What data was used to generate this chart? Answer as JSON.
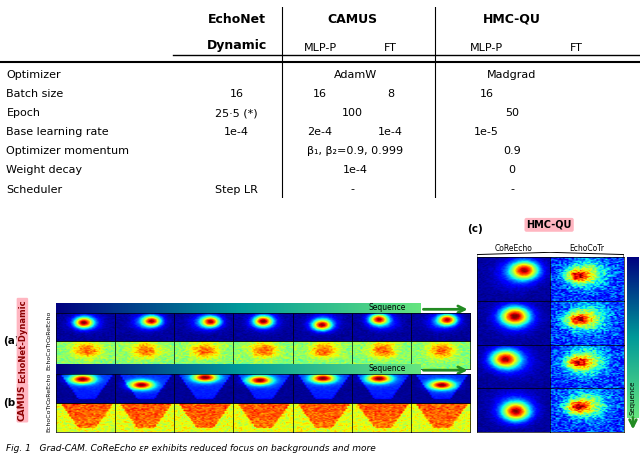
{
  "table_fontsize": 8,
  "table_header_fontsize": 9,
  "caption": "Fig. 1   Grad-CAM. CoReEcho εᴘ exhibits reduced focus on backgrounds and more",
  "pink_bg": "#F4A0A0",
  "panel_a_label": "(a)",
  "panel_b_label": "(b)",
  "panel_c_label": "(c)",
  "echonet_label": "EchoNet-Dynamic",
  "camus_label": "CAMUS",
  "hmcqu_label": "HMC-QU",
  "corecho_label": "CoReEcho",
  "echocotr_label": "EchoCoTr",
  "sequence_label": "Sequence",
  "n_cols_ab": 7,
  "n_cols_c": 2,
  "n_rows_c": 4
}
